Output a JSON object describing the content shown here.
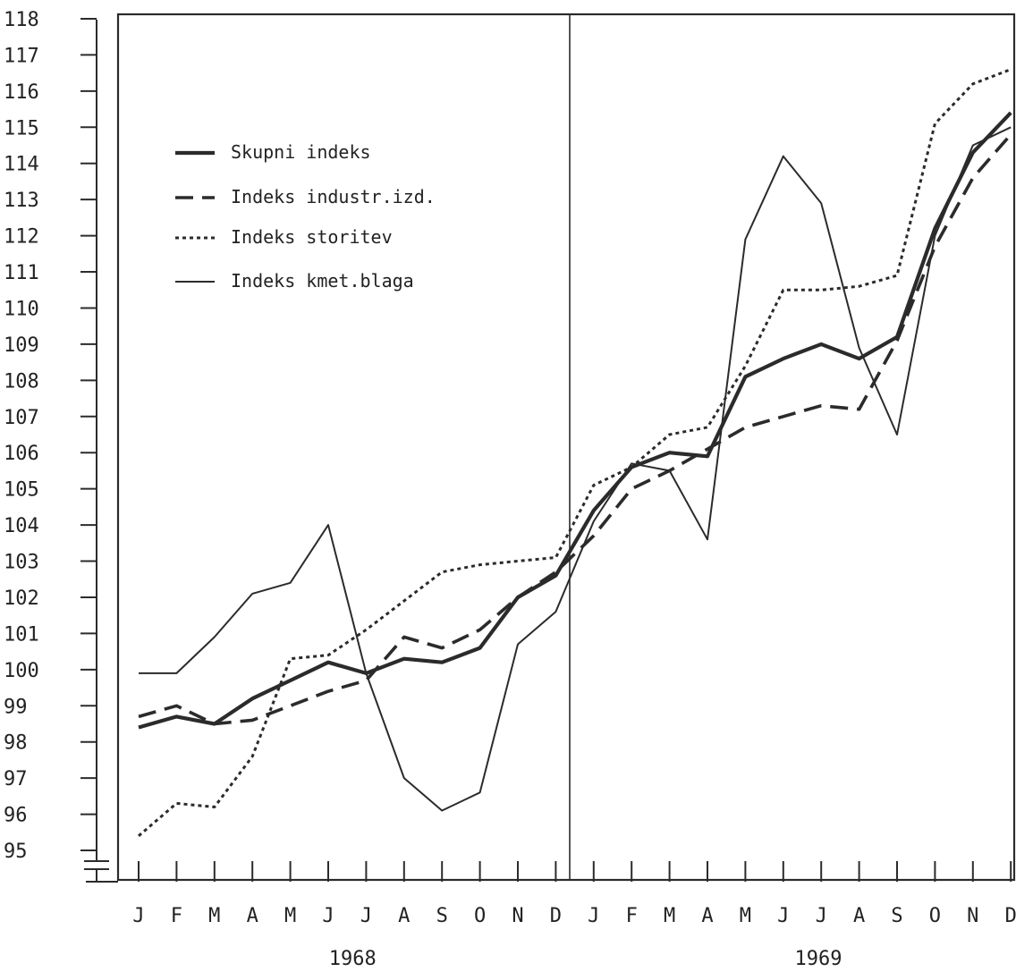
{
  "chart_data": {
    "type": "line",
    "title": "",
    "xlabel": "",
    "ylabel": "",
    "x": [
      "1968-01",
      "1968-02",
      "1968-03",
      "1968-04",
      "1968-05",
      "1968-06",
      "1968-07",
      "1968-08",
      "1968-09",
      "1968-10",
      "1968-11",
      "1968-12",
      "1969-01",
      "1969-02",
      "1969-03",
      "1969-04",
      "1969-05",
      "1969-06",
      "1969-07",
      "1969-08",
      "1969-09",
      "1969-10",
      "1969-11",
      "1969-12"
    ],
    "month_labels": [
      "J",
      "F",
      "M",
      "A",
      "M",
      "J",
      "J",
      "A",
      "S",
      "O",
      "N",
      "D",
      "J",
      "F",
      "M",
      "A",
      "M",
      "J",
      "J",
      "A",
      "S",
      "O",
      "N",
      "D"
    ],
    "years": [
      "1968",
      "1969"
    ],
    "ylim": [
      95,
      118
    ],
    "yticks": [
      "95",
      "96",
      "97",
      "98",
      "99",
      "100",
      "101",
      "102",
      "103",
      "104",
      "105",
      "106",
      "107",
      "108",
      "109",
      "110",
      "111",
      "112",
      "113",
      "114",
      "115",
      "116",
      "117",
      "118"
    ],
    "axis_break": true,
    "year_divider": true,
    "grid": false,
    "legend_position": "upper-left",
    "colors": {
      "ink": "#2b2b2b"
    },
    "series": [
      {
        "name": "Skupni indeks",
        "style": "thick-solid",
        "values": [
          98.4,
          98.7,
          98.5,
          99.2,
          99.7,
          100.2,
          99.9,
          100.3,
          100.2,
          100.6,
          102.0,
          102.6,
          104.4,
          105.6,
          106.0,
          105.9,
          108.1,
          108.6,
          109.0,
          108.6,
          109.2,
          112.2,
          114.3,
          115.4
        ]
      },
      {
        "name": "Indeks industr.izd.",
        "style": "dashed",
        "values": [
          98.7,
          99.0,
          98.5,
          98.6,
          99.0,
          99.4,
          99.7,
          100.9,
          100.6,
          101.1,
          102.0,
          102.7,
          103.7,
          105.0,
          105.5,
          106.1,
          106.7,
          107.0,
          107.3,
          107.2,
          109.1,
          111.7,
          113.6,
          114.8
        ]
      },
      {
        "name": "Indeks storitev",
        "style": "dotted",
        "values": [
          95.4,
          96.3,
          96.2,
          97.6,
          100.3,
          100.4,
          101.1,
          101.9,
          102.7,
          102.9,
          103.0,
          103.1,
          105.1,
          105.6,
          106.5,
          106.7,
          108.4,
          110.5,
          110.5,
          110.6,
          110.9,
          115.1,
          116.2,
          116.6
        ]
      },
      {
        "name": "Indeks kmet.blaga",
        "style": "thin-solid",
        "values": [
          99.9,
          99.9,
          100.9,
          102.1,
          102.4,
          104.0,
          99.9,
          97.0,
          96.1,
          96.6,
          100.7,
          101.6,
          104.1,
          105.7,
          105.5,
          103.6,
          111.9,
          114.2,
          112.9,
          108.9,
          106.5,
          112.0,
          114.5,
          115.0
        ]
      }
    ]
  }
}
